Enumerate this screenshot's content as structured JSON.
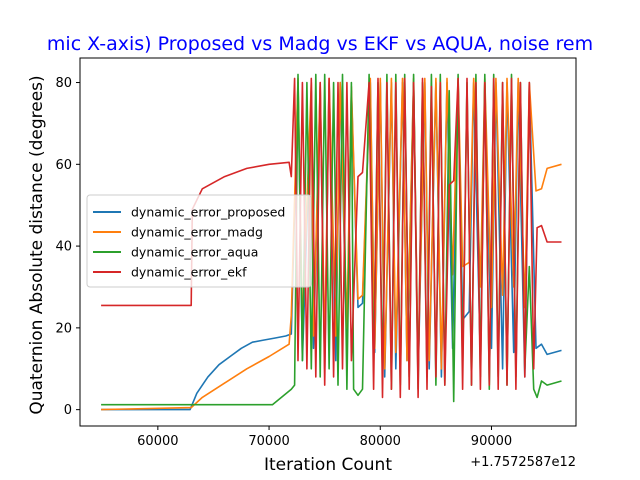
{
  "chart_data": {
    "type": "line",
    "title": "mic X-axis) Proposed vs Madg vs EKF vs AQUA, noise rem",
    "xlabel": "Iteration Count",
    "ylabel": "Quaternion Absolute distance (degrees)",
    "x_offset_label": "+1.7572587e12",
    "xlim": [
      53000,
      97600
    ],
    "ylim": [
      -4,
      86
    ],
    "xticks": [
      60000,
      70000,
      80000,
      90000
    ],
    "xtick_labels": [
      "60000",
      "70000",
      "80000",
      "90000"
    ],
    "yticks": [
      0,
      20,
      40,
      60,
      80
    ],
    "ytick_labels": [
      "0",
      "20",
      "40",
      "60",
      "80"
    ],
    "grid": false,
    "legend_position": "center-left",
    "series": [
      {
        "name": "dynamic_error_proposed",
        "color": "#1f77b4",
        "x": [
          54900,
          62900,
          63500,
          64500,
          65500,
          66500,
          67500,
          68500,
          69500,
          70500,
          71500,
          72000,
          72600,
          73000,
          73800,
          74000,
          74600,
          75000,
          75400,
          76000,
          76400,
          77000,
          77400,
          78000,
          78400,
          79100,
          79500,
          80000,
          80400,
          81000,
          81400,
          82000,
          82400,
          83000,
          83400,
          84000,
          84400,
          85000,
          85500,
          86000,
          86500,
          87000,
          87400,
          88000,
          88400,
          89000,
          89400,
          90000,
          90400,
          91000,
          91400,
          92000,
          92400,
          93000,
          93400,
          94000,
          94500,
          95000,
          96300
        ],
        "y": [
          0,
          0,
          4,
          8,
          11,
          13,
          15,
          16.5,
          17,
          17.5,
          18,
          18.5,
          80,
          12,
          78,
          15,
          79,
          10,
          80,
          12,
          80,
          15,
          78,
          25,
          26,
          80,
          14,
          80,
          8,
          80,
          10,
          80,
          12,
          80,
          8,
          80,
          10,
          80,
          8,
          80,
          15,
          80,
          22,
          24,
          80,
          12,
          80,
          15,
          80,
          10,
          80,
          14,
          80,
          8,
          80,
          15,
          16,
          13.5,
          14.5
        ]
      },
      {
        "name": "dynamic_error_madg",
        "color": "#ff7f0e",
        "x": [
          54900,
          63000,
          64000,
          66000,
          68000,
          70000,
          71800,
          72000,
          72600,
          73000,
          73800,
          74000,
          74600,
          75000,
          75400,
          76000,
          76400,
          77000,
          77400,
          78000,
          78400,
          79100,
          79500,
          80000,
          80400,
          81000,
          81400,
          82000,
          82400,
          83000,
          83400,
          84000,
          84400,
          85000,
          85500,
          86000,
          86500,
          87000,
          87400,
          88000,
          88400,
          89000,
          89400,
          90000,
          90400,
          91000,
          91400,
          92000,
          92400,
          93000,
          93400,
          94000,
          94500,
          95000,
          96300
        ],
        "y": [
          0,
          0.5,
          3,
          6.5,
          10,
          13,
          16,
          23,
          81,
          20,
          80,
          18,
          80,
          15,
          81,
          18,
          80,
          20,
          79,
          27,
          28,
          81,
          15,
          81,
          10,
          81,
          14,
          81,
          12,
          81,
          10,
          81,
          12,
          81,
          10,
          81,
          33,
          81,
          35,
          36,
          81,
          30,
          81,
          25,
          81,
          28,
          81,
          30,
          81,
          25,
          80,
          53.5,
          54,
          59,
          60
        ]
      },
      {
        "name": "dynamic_error_aqua",
        "color": "#2ca02c",
        "x": [
          54900,
          70000,
          70300,
          72000,
          72300,
          72600,
          73000,
          73400,
          73800,
          74200,
          74600,
          75000,
          75400,
          75800,
          76200,
          76600,
          77000,
          77400,
          77600,
          78000,
          78400,
          79000,
          79400,
          79800,
          80200,
          80600,
          81000,
          81400,
          81800,
          82200,
          82600,
          83000,
          83400,
          83800,
          84200,
          84600,
          85000,
          85400,
          85800,
          86200,
          86600,
          87000,
          87400,
          87800,
          88200,
          88600,
          89000,
          89400,
          89800,
          90200,
          90600,
          91000,
          91400,
          91800,
          92200,
          92600,
          93000,
          93400,
          93800,
          94100,
          94500,
          95000,
          96300
        ],
        "y": [
          1.2,
          1.2,
          1.2,
          5,
          6,
          82,
          12,
          80,
          10,
          82,
          8,
          82,
          10,
          80,
          6,
          82,
          5,
          80,
          5,
          3.5,
          5,
          82,
          10,
          80,
          8,
          82,
          5,
          82,
          6,
          82,
          8,
          82,
          5,
          80,
          8,
          82,
          6,
          82,
          6,
          78,
          2,
          82,
          10,
          80,
          6,
          82,
          8,
          82,
          5,
          82,
          8,
          80,
          6,
          82,
          8,
          80,
          10,
          35,
          5,
          3,
          7,
          6,
          7
        ]
      },
      {
        "name": "dynamic_error_ekf",
        "color": "#d62728",
        "x": [
          54900,
          63000,
          63100,
          64000,
          66000,
          68000,
          70000,
          71800,
          72000,
          72300,
          72600,
          73000,
          73400,
          73800,
          74200,
          74600,
          75000,
          75400,
          75800,
          76200,
          76600,
          77000,
          77400,
          78000,
          78400,
          79000,
          79400,
          79800,
          80200,
          80600,
          81000,
          81400,
          81800,
          82200,
          82600,
          83000,
          83400,
          83800,
          84200,
          84600,
          85000,
          85400,
          85800,
          86200,
          86600,
          87000,
          87400,
          87800,
          88200,
          88600,
          89000,
          89400,
          89800,
          90200,
          90600,
          91000,
          91400,
          91800,
          92200,
          92600,
          93000,
          93400,
          93800,
          94100,
          94500,
          95000,
          96300
        ],
        "y": [
          25.5,
          25.5,
          49,
          54,
          57,
          59,
          60,
          60.5,
          57,
          81,
          12,
          80,
          10,
          81,
          8,
          80,
          6,
          81,
          8,
          80,
          10,
          80,
          12,
          57,
          58,
          80,
          5,
          81,
          3,
          80,
          5,
          80,
          3,
          81,
          5,
          80,
          3,
          81,
          5,
          79,
          8,
          80,
          6,
          55,
          56,
          81,
          5,
          81,
          6,
          80,
          5,
          80,
          6,
          81,
          5,
          80,
          6,
          81,
          5,
          80,
          8,
          80,
          10,
          44.5,
          45,
          41,
          41
        ]
      }
    ]
  }
}
